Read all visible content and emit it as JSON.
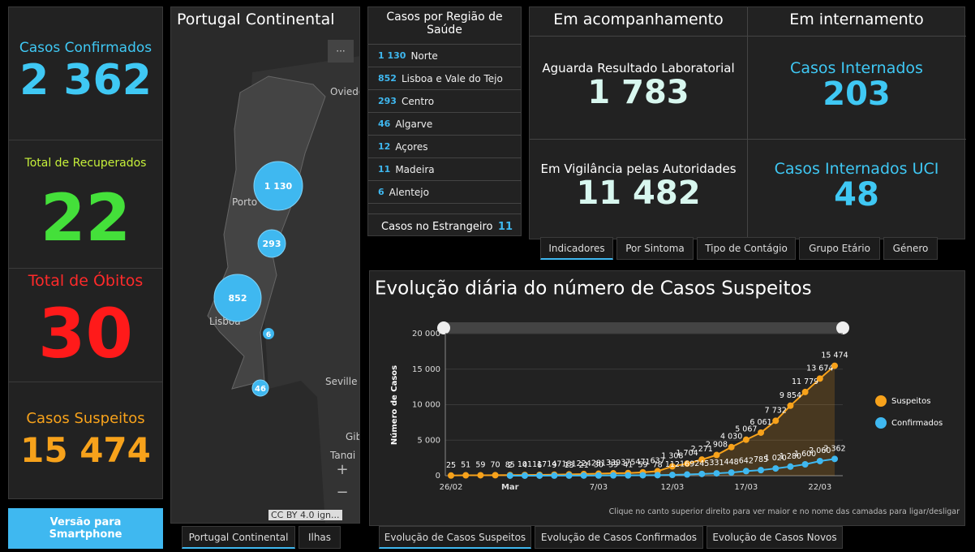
{
  "kpis": [
    {
      "label": "Casos Confirmados",
      "value": "2 362"
    },
    {
      "label": "Total de Recuperados",
      "value": "22"
    },
    {
      "label": "Total de Óbitos",
      "value": "30"
    },
    {
      "label": "Casos Suspeitos",
      "value": "15 474"
    }
  ],
  "smartphone_button": "Versão para Smartphone",
  "map": {
    "title": "Portugal Continental",
    "menu": "···",
    "places": [
      "Oviedo",
      "Porto",
      "Lisboa",
      "Seville",
      "Gib",
      "Tangi"
    ],
    "clusters": [
      "1 130",
      "293",
      "852",
      "6",
      "46"
    ],
    "zoom_in": "+",
    "zoom_out": "−",
    "attribution": "CC BY 4.0 ign...",
    "tabs": [
      "Portugal Continental",
      "Ilhas"
    ]
  },
  "regions": {
    "title": "Casos por Região de Saúde",
    "items": [
      {
        "value": "1 130",
        "name": "Norte"
      },
      {
        "value": "852",
        "name": "Lisboa e Vale do Tejo"
      },
      {
        "value": "293",
        "name": "Centro"
      },
      {
        "value": "46",
        "name": "Algarve"
      },
      {
        "value": "12",
        "name": "Açores"
      },
      {
        "value": "11",
        "name": "Madeira"
      },
      {
        "value": "6",
        "name": "Alentejo"
      }
    ],
    "abroad_label": "Casos no Estrangeiro",
    "abroad_value": "11"
  },
  "indicators": {
    "headers": [
      "Em acompanhamento",
      "Em internamento"
    ],
    "cells": [
      {
        "label": "Aguarda Resultado Laboratorial",
        "value": "1 783"
      },
      {
        "label": "Casos Internados",
        "value": "203"
      },
      {
        "label": "Em Vigilância pelas Autoridades",
        "value": "11 482"
      },
      {
        "label": "Casos Internados UCI",
        "value": "48"
      }
    ],
    "tabs": [
      "Indicadores",
      "Por Sintoma",
      "Tipo de Contágio",
      "Grupo Etário",
      "Género"
    ]
  },
  "chart_data": {
    "type": "line",
    "title": "Evolução diária do número de Casos Suspeitos",
    "y_label": "Número de Casos",
    "categories": [
      "26/02",
      null,
      null,
      null,
      "Mar",
      null,
      null,
      null,
      null,
      null,
      "7/03",
      null,
      null,
      null,
      null,
      "12/03",
      null,
      null,
      null,
      null,
      "17/03",
      null,
      null,
      null,
      null,
      "22/03",
      null
    ],
    "series": [
      {
        "name": "Suspeitos",
        "color": "#f7a21b",
        "values": [
          25,
          51,
          59,
          70,
          85,
          101,
          117,
          147,
          181,
          224,
          281,
          339,
          375,
          471,
          637,
          1308,
          1704,
          2271,
          2908,
          4030,
          5067,
          6061,
          7732,
          9854,
          11779,
          13674,
          15474
        ],
        "value_labels": [
          "25",
          "51",
          "59",
          "70",
          "85",
          "101",
          "117",
          "147",
          "181",
          "224",
          "281",
          "339",
          "375",
          "471",
          "637",
          "1 308",
          "1 704",
          "2 271",
          "2 908",
          "4 030",
          "5 067",
          "6 061",
          "7 732",
          "9 854",
          "11 779",
          "13 674",
          "15 474"
        ]
      },
      {
        "name": "Confirmados",
        "color": "#3fb8f0",
        "values": [
          null,
          null,
          null,
          null,
          2,
          4,
          6,
          9,
          13,
          21,
          30,
          39,
          41,
          59,
          78,
          112,
          169,
          245,
          331,
          448,
          642,
          785,
          1020,
          1280,
          1600,
          2060,
          2362
        ],
        "value_labels": [
          null,
          null,
          null,
          null,
          "2",
          "4",
          "6",
          "9",
          "13",
          "21",
          "30",
          "39",
          "41",
          "59",
          "78",
          "112",
          "169",
          "245",
          "331",
          "448",
          "642",
          "785",
          "1 020",
          "1 280",
          "1 600",
          "2 060",
          "2 362"
        ]
      }
    ],
    "ylim": [
      0,
      20000
    ],
    "yticks": [
      0,
      {
        "value": 5000,
        "label": "5 000"
      },
      {
        "value": 10000,
        "label": "10 000"
      },
      {
        "value": 15000,
        "label": "15 000"
      },
      {
        "value": 20000,
        "label": "20 000"
      }
    ],
    "legend": "right",
    "footnote": "Clique no canto superior direito para ver maior e no nome das camadas para ligar/desligar",
    "tabs": [
      "Evolução de Casos Suspeitos",
      "Evolução de Casos Confirmados",
      "Evolução de Casos Novos"
    ]
  }
}
